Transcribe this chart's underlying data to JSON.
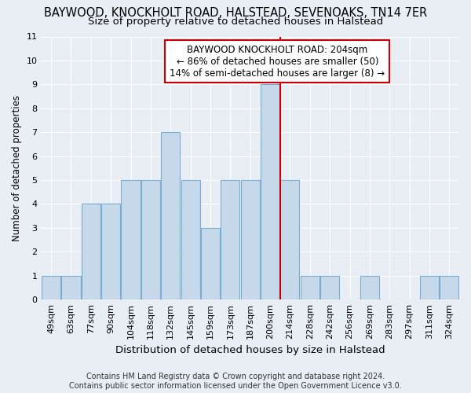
{
  "title": "BAYWOOD, KNOCKHOLT ROAD, HALSTEAD, SEVENOAKS, TN14 7ER",
  "subtitle": "Size of property relative to detached houses in Halstead",
  "xlabel": "Distribution of detached houses by size in Halstead",
  "ylabel": "Number of detached properties",
  "categories": [
    "49sqm",
    "63sqm",
    "77sqm",
    "90sqm",
    "104sqm",
    "118sqm",
    "132sqm",
    "145sqm",
    "159sqm",
    "173sqm",
    "187sqm",
    "200sqm",
    "214sqm",
    "228sqm",
    "242sqm",
    "256sqm",
    "269sqm",
    "283sqm",
    "297sqm",
    "311sqm",
    "324sqm"
  ],
  "values": [
    1,
    1,
    4,
    4,
    5,
    5,
    7,
    5,
    3,
    5,
    5,
    9,
    5,
    1,
    1,
    0,
    1,
    0,
    0,
    1,
    1
  ],
  "bar_color": "#c6d9ea",
  "bar_edgecolor": "#7aadd4",
  "highlight_index": 11,
  "vline_color": "#cc0000",
  "annotation_line1": "BAYWOOD KNOCKHOLT ROAD: 204sqm",
  "annotation_line2": "← 86% of detached houses are smaller (50)",
  "annotation_line3": "14% of semi-detached houses are larger (8) →",
  "annotation_boxcolor": "white",
  "annotation_boxedgecolor": "#cc0000",
  "ylim": [
    0,
    11
  ],
  "yticks": [
    0,
    1,
    2,
    3,
    4,
    5,
    6,
    7,
    8,
    9,
    10,
    11
  ],
  "footnote": "Contains HM Land Registry data © Crown copyright and database right 2024.\nContains public sector information licensed under the Open Government Licence v3.0.",
  "bg_color": "#e8eef4",
  "grid_color": "white",
  "title_fontsize": 10.5,
  "subtitle_fontsize": 9.5,
  "xlabel_fontsize": 9.5,
  "ylabel_fontsize": 8.5,
  "tick_fontsize": 8,
  "annotation_fontsize": 8.5,
  "footnote_fontsize": 7
}
